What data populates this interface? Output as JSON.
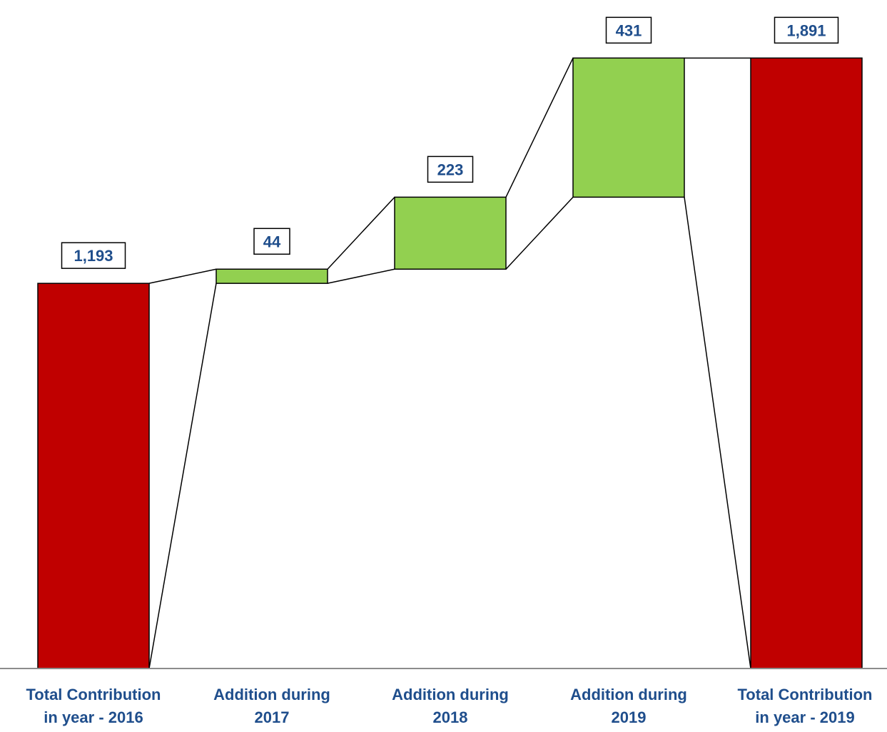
{
  "chart_data": {
    "type": "bar",
    "subtype": "waterfall",
    "title": "",
    "xlabel": "",
    "ylabel": "",
    "ylim": [
      0,
      2000
    ],
    "grid": false,
    "legend": "none",
    "categories": [
      [
        "Total Contribution",
        "in year - 2016"
      ],
      [
        "Addition during",
        "2017"
      ],
      [
        "Addition during",
        "2018"
      ],
      [
        "Addition during",
        "2019"
      ],
      [
        "Total Contribution",
        "in year - 2019"
      ]
    ],
    "bars": [
      {
        "kind": "total",
        "base": 0,
        "value": 1193,
        "label": "1,193"
      },
      {
        "kind": "increase",
        "base": 1193,
        "value": 44,
        "label": "44"
      },
      {
        "kind": "increase",
        "base": 1237,
        "value": 223,
        "label": "223"
      },
      {
        "kind": "increase",
        "base": 1460,
        "value": 431,
        "label": "431"
      },
      {
        "kind": "total",
        "base": 0,
        "value": 1891,
        "label": "1,891"
      }
    ],
    "colors": {
      "total": "#C00000",
      "increase": "#92D050",
      "label_text": "#1F4E8C",
      "axis": "#8C8C8C",
      "connector": "#000000"
    }
  }
}
